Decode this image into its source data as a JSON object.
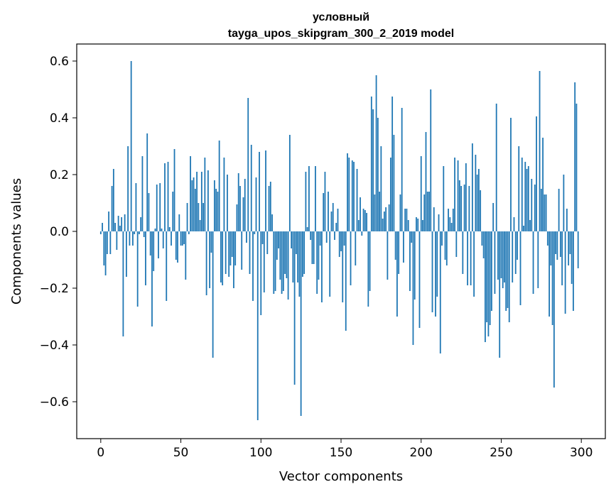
{
  "chart_data": {
    "type": "bar",
    "title_line1": "условный",
    "title_line2": "tayga_upos_skipgram_300_2_2019 model",
    "xlabel": "Vector components",
    "ylabel": "Components values",
    "xlim": [
      -15,
      315
    ],
    "ylim": [
      -0.73,
      0.66
    ],
    "xticks": [
      0,
      50,
      100,
      150,
      200,
      250,
      300
    ],
    "yticks": [
      -0.6,
      -0.4,
      -0.2,
      0.0,
      0.2,
      0.4,
      0.6
    ],
    "ytick_labels": [
      "−0.6",
      "−0.4",
      "−0.2",
      "0.0",
      "0.2",
      "0.4",
      "0.6"
    ],
    "grid": false,
    "legend": "none",
    "bar_color": "#1f77b4",
    "x_start": 0,
    "values": [
      -0.01,
      0.03,
      -0.12,
      -0.155,
      -0.08,
      0.07,
      -0.08,
      0.16,
      0.22,
      0.03,
      -0.065,
      0.055,
      0.02,
      0.05,
      -0.37,
      0.06,
      -0.16,
      0.3,
      -0.05,
      0.6,
      -0.05,
      -0.01,
      0.17,
      -0.265,
      -0.01,
      0.05,
      0.265,
      -0.02,
      -0.19,
      0.345,
      0.135,
      -0.085,
      -0.335,
      -0.14,
      0.01,
      0.165,
      -0.095,
      0.17,
      0.01,
      -0.06,
      0.24,
      -0.245,
      0.245,
      0.015,
      -0.05,
      0.14,
      0.29,
      -0.1,
      -0.11,
      0.06,
      -0.05,
      -0.05,
      -0.045,
      -0.17,
      0.1,
      -0.01,
      0.265,
      0.18,
      0.19,
      0.15,
      0.21,
      0.1,
      0.04,
      0.21,
      0.1,
      0.26,
      -0.225,
      0.215,
      -0.2,
      -0.075,
      -0.445,
      0.18,
      0.15,
      0.14,
      0.32,
      -0.18,
      -0.19,
      0.26,
      -0.15,
      0.2,
      -0.16,
      -0.12,
      -0.09,
      -0.2,
      -0.12,
      0.095,
      0.205,
      0.16,
      -0.135,
      0.12,
      0.185,
      -0.04,
      0.47,
      -0.15,
      0.305,
      -0.245,
      -0.01,
      0.19,
      -0.665,
      0.28,
      -0.295,
      -0.045,
      -0.215,
      0.285,
      -0.08,
      0.16,
      0.175,
      0.06,
      -0.22,
      -0.21,
      -0.1,
      -0.06,
      -0.17,
      -0.22,
      -0.21,
      -0.15,
      -0.165,
      -0.24,
      0.34,
      -0.06,
      -0.18,
      -0.54,
      -0.08,
      -0.18,
      -0.23,
      -0.65,
      -0.16,
      -0.15,
      0.21,
      0.015,
      0.23,
      -0.03,
      -0.115,
      -0.115,
      0.23,
      -0.22,
      -0.17,
      -0.05,
      -0.25,
      0.135,
      0.21,
      -0.04,
      0.14,
      -0.23,
      0.07,
      0.1,
      -0.03,
      0.03,
      0.08,
      -0.09,
      -0.07,
      -0.25,
      -0.05,
      -0.35,
      0.275,
      0.26,
      -0.19,
      0.25,
      0.245,
      -0.12,
      0.22,
      0.04,
      0.12,
      -0.015,
      0.08,
      0.075,
      0.065,
      -0.265,
      -0.21,
      0.475,
      0.43,
      0.13,
      0.55,
      0.4,
      0.14,
      0.3,
      0.045,
      0.07,
      0.085,
      -0.17,
      0.095,
      0.26,
      0.475,
      0.34,
      -0.1,
      -0.3,
      -0.15,
      0.13,
      0.435,
      -0.11,
      0.08,
      0.08,
      0.04,
      -0.21,
      -0.04,
      -0.4,
      -0.24,
      0.05,
      0.045,
      -0.34,
      0.265,
      0.04,
      0.13,
      0.35,
      0.14,
      0.14,
      0.5,
      -0.285,
      0.085,
      -0.3,
      -0.23,
      0.06,
      -0.43,
      -0.05,
      0.23,
      -0.1,
      -0.12,
      0.08,
      0.05,
      0.03,
      0.08,
      0.26,
      -0.09,
      0.25,
      0.18,
      0.16,
      -0.15,
      0.165,
      0.24,
      -0.19,
      0.16,
      -0.19,
      0.31,
      -0.23,
      0.27,
      0.2,
      0.22,
      0.145,
      -0.05,
      -0.095,
      -0.39,
      -0.32,
      -0.37,
      -0.33,
      -0.28,
      0.1,
      -0.22,
      0.45,
      -0.17,
      -0.445,
      -0.165,
      -0.2,
      -0.18,
      -0.28,
      -0.27,
      -0.32,
      0.4,
      -0.18,
      0.05,
      -0.15,
      -0.1,
      0.3,
      -0.26,
      0.26,
      0.02,
      0.245,
      0.22,
      0.23,
      0.04,
      0.185,
      -0.22,
      0.165,
      0.405,
      -0.2,
      0.565,
      0.15,
      0.33,
      0.13,
      0.13,
      -0.05,
      -0.3,
      -0.12,
      -0.33,
      -0.55,
      -0.08,
      -0.1,
      0.15,
      -0.09,
      -0.19,
      0.2,
      -0.29,
      0.08,
      -0.12,
      -0.08,
      -0.185,
      -0.28,
      0.525,
      0.45,
      -0.13
    ]
  }
}
